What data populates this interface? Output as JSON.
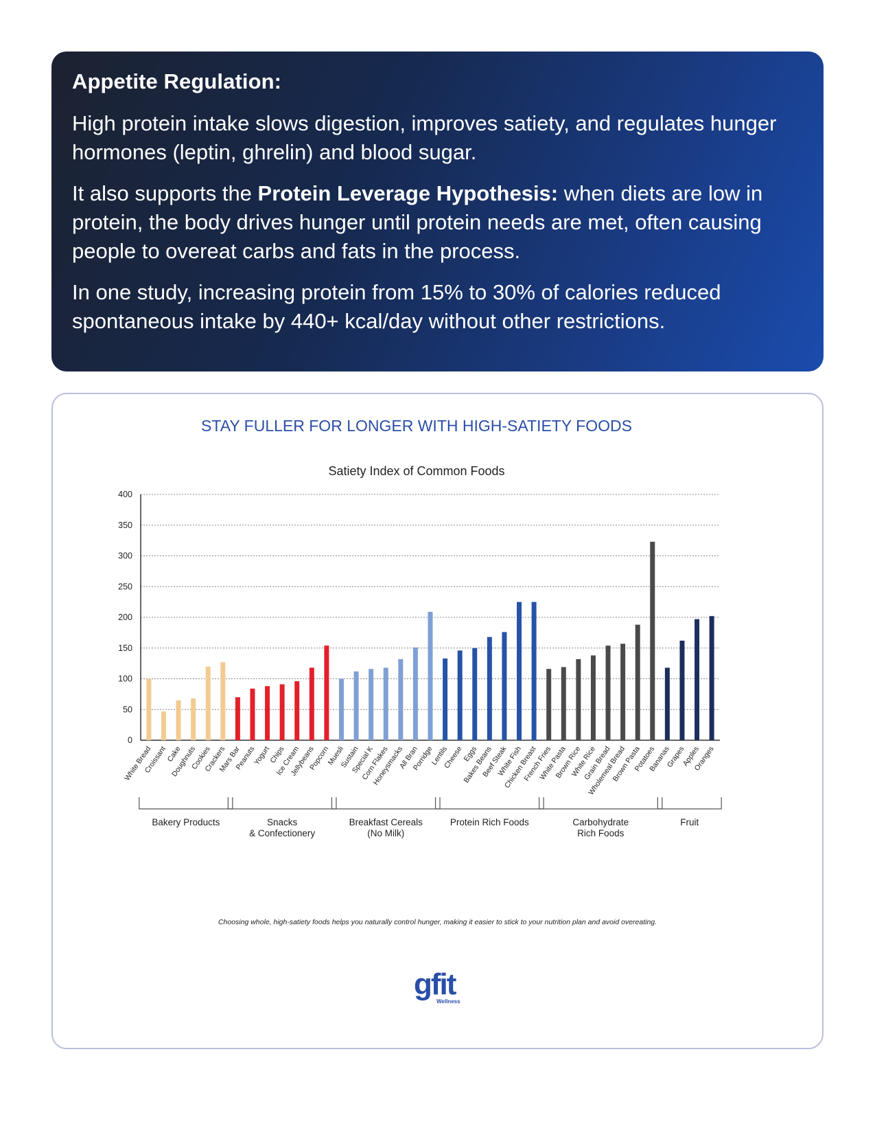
{
  "info": {
    "heading": "Appetite Regulation:",
    "para1": "High protein intake slows digestion, improves satiety, and regulates hunger hormones (leptin, ghrelin) and blood sugar.",
    "para2_prefix": "It also supports the ",
    "para2_bold": "Protein Leverage Hypothesis:",
    "para2_suffix": " when diets are low in protein, the body drives hunger until protein needs are met, often causing people to overeat carbs and fats in the process.",
    "para3": "In one study, increasing protein from 15% to 30% of calories reduced spontaneous intake by 440+ kcal/day without other restrictions."
  },
  "chart_card": {
    "headline": "STAY FULLER FOR LONGER WITH HIGH-SATIETY FOODS",
    "headline_color": "#2a4ea8",
    "footnote": "Choosing whole, high-satiety foods helps you naturally control hunger, making it easier to stick to your nutrition plan and avoid overeating.",
    "logo_main": "gfit",
    "logo_sub": "Wellness"
  },
  "chart_data": {
    "type": "bar",
    "title": "Satiety Index of Common Foods",
    "xlabel": "",
    "ylabel": "",
    "ylim": [
      0,
      400
    ],
    "yticks": [
      0,
      50,
      100,
      150,
      200,
      250,
      300,
      350,
      400
    ],
    "grid": true,
    "groups": [
      {
        "name": "Bakery Products",
        "color": "#f3cb91",
        "categories": [
          "White Bread",
          "Croissant",
          "Cake",
          "Doughnuts",
          "Cookies",
          "Crackers"
        ],
        "values": [
          100,
          47,
          65,
          68,
          120,
          127
        ]
      },
      {
        "name": "Snacks\n& Confectionery",
        "color": "#e3202a",
        "categories": [
          "Mars Bar",
          "Peanuts",
          "Yogurt",
          "Chips",
          "Ice Cream",
          "Jellybeans",
          "Popcorn"
        ],
        "values": [
          70,
          84,
          88,
          91,
          96,
          118,
          154
        ]
      },
      {
        "name": "Breakfast Cereals\n(No Milk)",
        "color": "#7fa0d4",
        "categories": [
          "Muesli",
          "Sustain",
          "Special K",
          "Corn Flakes",
          "Honeysmacks",
          "All Bran",
          "Porridge"
        ],
        "values": [
          100,
          112,
          116,
          118,
          132,
          151,
          209
        ]
      },
      {
        "name": "Protein Rich Foods",
        "color": "#2653a6",
        "categories": [
          "Lentils",
          "Cheese",
          "Eggs",
          "Bakes Beans",
          "Beef Steak",
          "White Fish",
          "Chicken Breast"
        ],
        "values": [
          133,
          146,
          150,
          168,
          176,
          225,
          225
        ]
      },
      {
        "name": "Carbohydrate\nRich Foods",
        "color": "#4a4a4a",
        "categories": [
          "French Fries",
          "White Pasta",
          "Brown Rice",
          "White Rice",
          "Grain Bread",
          "Wholemeal Bread",
          "Brown Pasta",
          "Potatoes"
        ],
        "values": [
          116,
          119,
          132,
          138,
          154,
          157,
          188,
          323
        ]
      },
      {
        "name": "Fruit",
        "color": "#1b2f5c",
        "categories": [
          "Bananas",
          "Grapes",
          "Apples",
          "Oranges"
        ],
        "values": [
          118,
          162,
          197,
          202
        ]
      }
    ]
  }
}
